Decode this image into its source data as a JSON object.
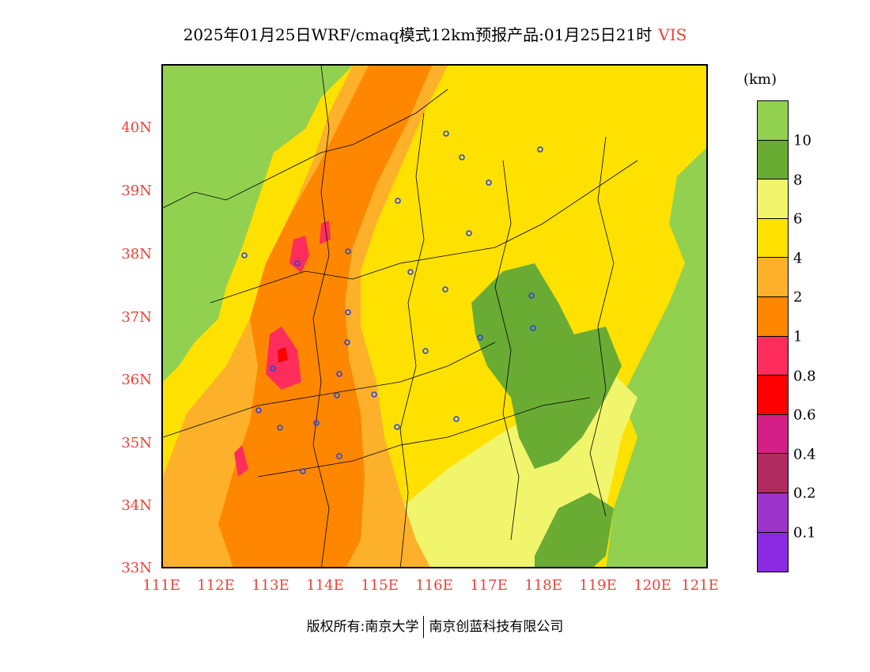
{
  "title": {
    "main": "2025年01月25日WRF/cmaq模式12km预报产品:01月25日21时",
    "variable": "VIS"
  },
  "map": {
    "lat_labels": [
      "40N",
      "39N",
      "38N",
      "37N",
      "36N",
      "35N",
      "34N",
      "33N"
    ],
    "lon_labels": [
      "111E",
      "112E",
      "113E",
      "114E",
      "115E",
      "116E",
      "117E",
      "118E",
      "119E",
      "120E",
      "121E"
    ],
    "colors": {
      "c0": "#92d050",
      "c1": "#6aab34",
      "c2": "#f1f56b",
      "c3": "#ffe100",
      "c4": "#fdb12a",
      "c5": "#ff8700",
      "c6": "#ff2d5c",
      "c7": "#ff0000",
      "c8": "#d41f86",
      "c9": "#b02b60",
      "c10": "#9b34c8",
      "c11": "#8a2be2"
    }
  },
  "colorbar": {
    "unit": "(km)",
    "labels": [
      "10",
      "8",
      "6",
      "4",
      "2",
      "1",
      "0.8",
      "0.6",
      "0.4",
      "0.2",
      "0.1"
    ],
    "colors": [
      "#92d050",
      "#6aab34",
      "#f1f56b",
      "#ffe100",
      "#fdb12a",
      "#ff8700",
      "#ff2d5c",
      "#ff0000",
      "#d41f86",
      "#b02b60",
      "#9b34c8",
      "#8a2be2"
    ]
  },
  "footer": {
    "left": "版权所有:南京大学",
    "right": "南京创蓝科技有限公司"
  }
}
